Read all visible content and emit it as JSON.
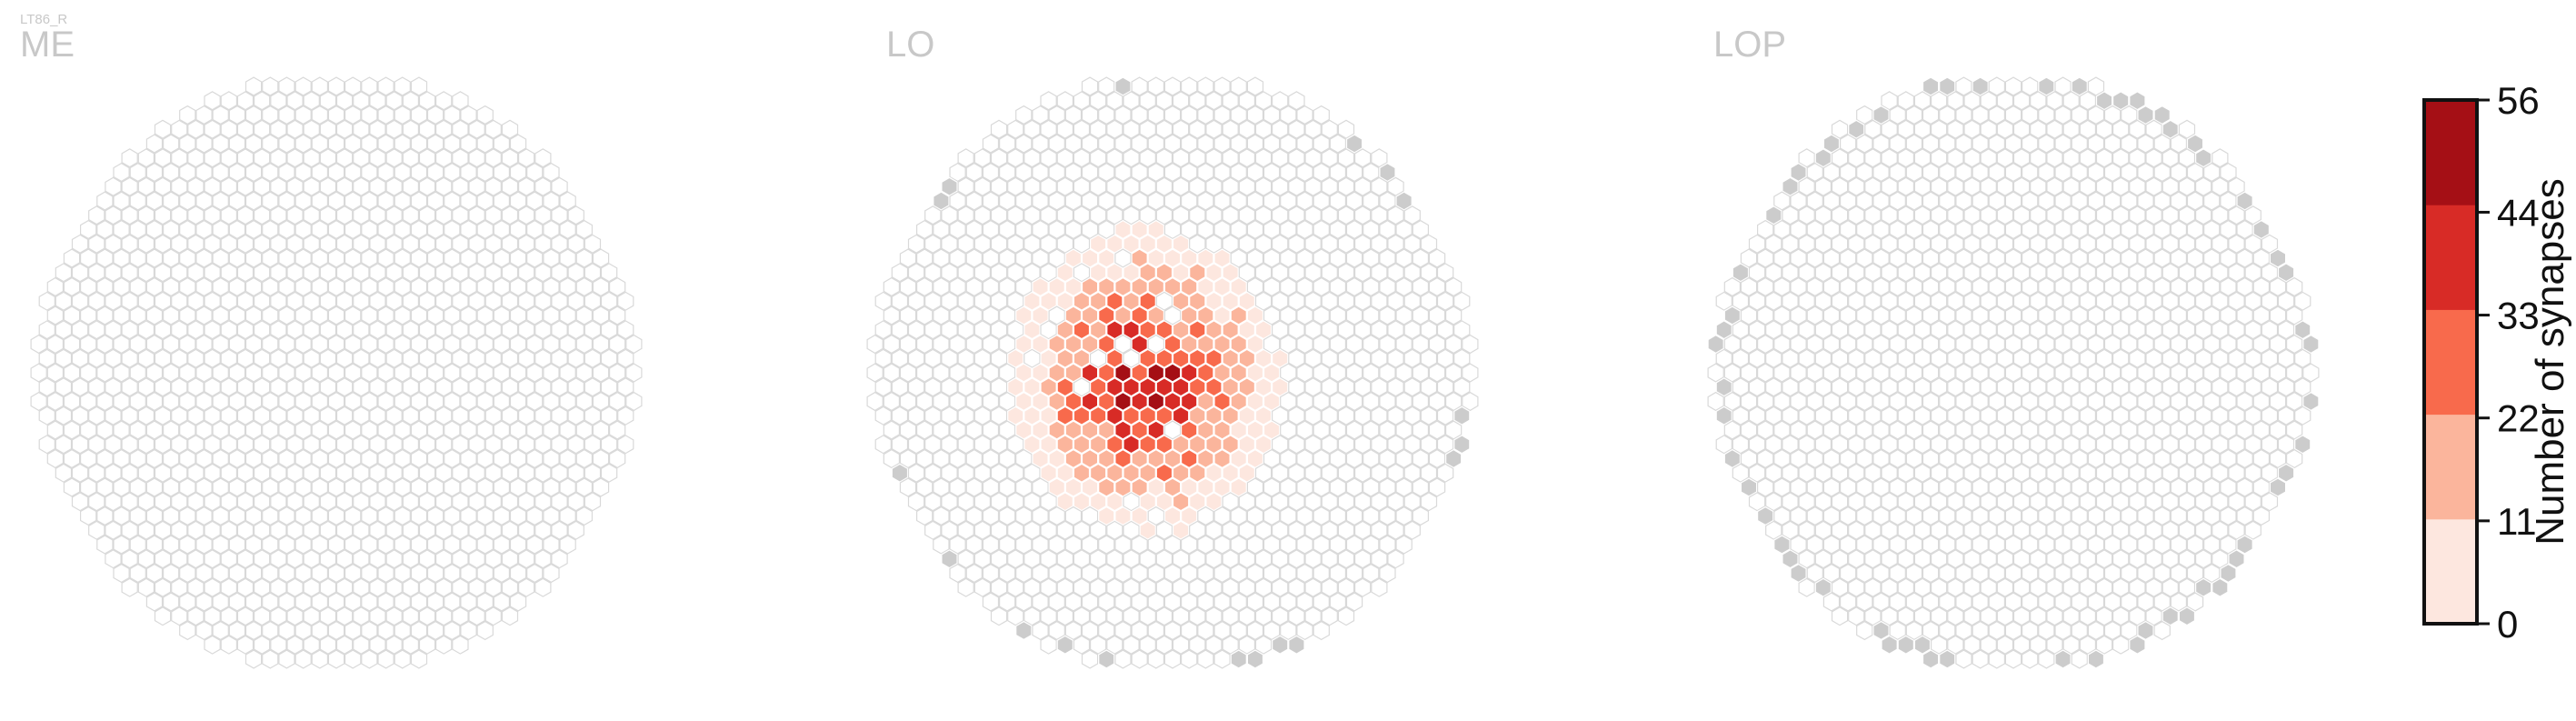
{
  "figure": {
    "cell_type_label": "LT86_R"
  },
  "chart_data": {
    "type": "heatmap",
    "grid": "hexagonal column lattice",
    "panels": [
      {
        "name": "ME",
        "active_columns": [],
        "highlight_columns": []
      },
      {
        "name": "LO",
        "description": "synapse counts per column, high-density core centered left of panel",
        "core_value_peak": 56
      },
      {
        "name": "LOP",
        "active_columns": [],
        "highlight_columns": "grey columns along the rim"
      }
    ],
    "colorbar": {
      "title": "Number of synapses",
      "ticks": [
        0,
        11,
        22,
        33,
        44,
        56
      ],
      "colors": [
        "#fde7df",
        "#fbb59c",
        "#f86a4c",
        "#d82b26",
        "#a50f15"
      ],
      "range": [
        0,
        56
      ]
    },
    "colors": {
      "empty_cell_stroke": "#d9d9d9",
      "empty_cell_fill": "#ffffff",
      "missing_cell_fill": "#cccccc"
    }
  }
}
